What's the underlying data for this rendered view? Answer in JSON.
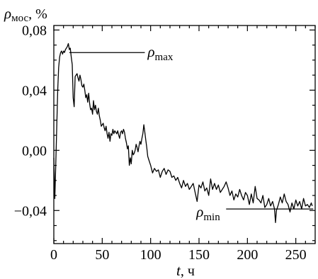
{
  "chart_data": {
    "type": "line",
    "title": "",
    "xlabel": {
      "var": "t",
      "unit": ", ч"
    },
    "ylabel": {
      "var": "ρ",
      "sub": "мос",
      "unit": ", %"
    },
    "xlim": [
      0,
      270
    ],
    "ylim": [
      -0.062,
      0.083
    ],
    "x_ticks": [
      0,
      50,
      100,
      150,
      200,
      250
    ],
    "x_tick_labels": [
      "0",
      "50",
      "100",
      "150",
      "200",
      "250"
    ],
    "x_minor_step": 10,
    "y_ticks": [
      -0.04,
      0.0,
      0.04,
      0.08
    ],
    "y_tick_labels": [
      "−0,04",
      "0,00",
      "0,04",
      "0,08"
    ],
    "y_minor_step": 0.01,
    "grid": false,
    "series": [
      {
        "x": [
          0,
          1,
          2,
          3,
          4,
          5,
          6,
          7,
          8,
          9,
          10,
          11,
          12,
          13,
          14,
          15,
          16,
          17,
          18,
          19,
          20,
          21,
          22,
          23,
          24,
          25,
          26,
          27,
          28,
          29,
          30,
          31,
          32,
          33,
          34,
          35,
          36,
          37,
          38,
          39,
          40,
          41,
          42,
          43,
          44,
          45,
          46,
          47,
          48,
          49,
          50,
          51,
          52,
          53,
          54,
          55,
          56,
          57,
          58,
          59,
          60,
          61,
          62,
          63,
          64,
          65,
          66,
          67,
          68,
          69,
          70,
          71,
          72,
          73,
          74,
          75,
          76,
          77,
          78,
          79,
          80,
          81,
          82,
          83,
          84,
          85,
          86,
          87,
          88,
          89,
          90,
          91,
          92,
          93,
          94,
          95,
          96,
          97,
          98,
          99,
          100,
          102,
          104,
          106,
          108,
          110,
          112,
          114,
          116,
          118,
          120,
          122,
          124,
          126,
          128,
          130,
          132,
          134,
          136,
          138,
          140,
          142,
          144,
          146,
          148,
          150,
          152,
          154,
          156,
          158,
          160,
          162,
          164,
          166,
          168,
          170,
          172,
          174,
          176,
          178,
          180,
          182,
          184,
          186,
          188,
          190,
          192,
          194,
          196,
          198,
          200,
          202,
          204,
          206,
          208,
          210,
          212,
          214,
          216,
          218,
          220,
          222,
          224,
          226,
          228,
          229,
          230,
          232,
          234,
          236,
          238,
          240,
          242,
          244,
          246,
          248,
          250,
          252,
          254,
          256,
          258,
          260,
          262,
          264,
          266,
          267
        ],
        "y": [
          -0.005,
          -0.032,
          -0.01,
          0.015,
          0.04,
          0.055,
          0.062,
          0.065,
          0.066,
          0.064,
          0.066,
          0.065,
          0.067,
          0.068,
          0.069,
          0.071,
          0.067,
          0.068,
          0.062,
          0.057,
          0.035,
          0.029,
          0.049,
          0.05,
          0.051,
          0.048,
          0.046,
          0.05,
          0.047,
          0.043,
          0.042,
          0.044,
          0.04,
          0.035,
          0.037,
          0.032,
          0.038,
          0.031,
          0.027,
          0.028,
          0.024,
          0.033,
          0.027,
          0.03,
          0.026,
          0.024,
          0.028,
          0.023,
          0.02,
          0.016,
          0.017,
          0.018,
          0.015,
          0.013,
          0.016,
          0.011,
          0.008,
          0.012,
          0.006,
          0.011,
          0.01,
          0.014,
          0.011,
          0.013,
          0.012,
          0.011,
          0.013,
          0.01,
          0.008,
          0.012,
          0.013,
          0.011,
          0.014,
          0.012,
          0.008,
          0.005,
          0.001,
          0.003,
          -0.01,
          -0.005,
          -0.009,
          0.0,
          -0.003,
          -0.002,
          0.0,
          0.004,
          0.002,
          -0.001,
          0.003,
          0.006,
          0.004,
          0.008,
          0.011,
          0.017,
          0.012,
          0.007,
          0.002,
          -0.004,
          -0.006,
          -0.008,
          -0.01,
          -0.015,
          -0.012,
          -0.014,
          -0.013,
          -0.018,
          -0.014,
          -0.012,
          -0.016,
          -0.013,
          -0.014,
          -0.018,
          -0.017,
          -0.02,
          -0.018,
          -0.022,
          -0.025,
          -0.02,
          -0.024,
          -0.022,
          -0.026,
          -0.024,
          -0.022,
          -0.028,
          -0.034,
          -0.023,
          -0.025,
          -0.021,
          -0.027,
          -0.025,
          -0.03,
          -0.019,
          -0.026,
          -0.022,
          -0.026,
          -0.023,
          -0.028,
          -0.026,
          -0.024,
          -0.021,
          -0.025,
          -0.03,
          -0.027,
          -0.033,
          -0.029,
          -0.031,
          -0.026,
          -0.03,
          -0.033,
          -0.028,
          -0.03,
          -0.036,
          -0.029,
          -0.035,
          -0.024,
          -0.032,
          -0.033,
          -0.035,
          -0.03,
          -0.038,
          -0.036,
          -0.032,
          -0.037,
          -0.034,
          -0.039,
          -0.048,
          -0.04,
          -0.036,
          -0.031,
          -0.035,
          -0.029,
          -0.034,
          -0.036,
          -0.041,
          -0.035,
          -0.039,
          -0.033,
          -0.037,
          -0.034,
          -0.039,
          -0.032,
          -0.037,
          -0.036,
          -0.038,
          -0.035,
          -0.037
        ]
      }
    ],
    "annotations": [
      {
        "var": "ρ",
        "sub": "max",
        "level": 0.065,
        "from_x": 16,
        "to_x": 94
      },
      {
        "var": "ρ",
        "sub": "min",
        "level": -0.039,
        "from_x": 178,
        "to_x": 268
      }
    ]
  }
}
